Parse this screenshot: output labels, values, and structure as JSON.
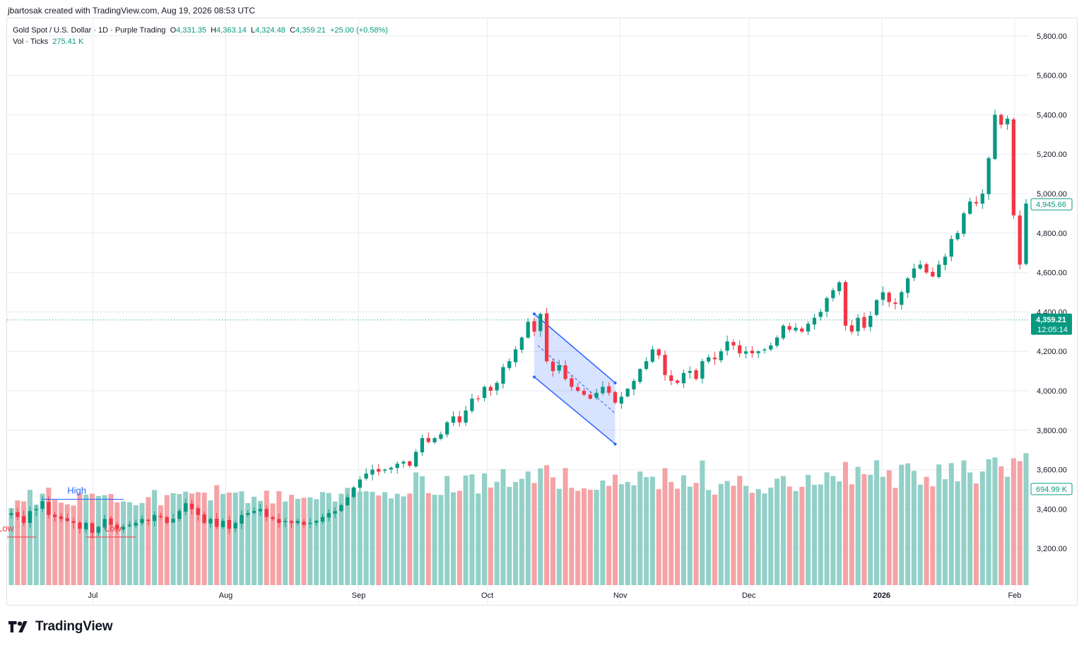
{
  "credit": "jbartosak created with TradingView.com, Aug 19, 2026 08:53 UTC",
  "brand": "TradingView",
  "legend": {
    "symbol": "Gold Spot / U.S. Dollar · 1D · Purple Trading",
    "o_label": "O",
    "o": "4,331.35",
    "h_label": "H",
    "h": "4,363.14",
    "l_label": "L",
    "l": "4,324.48",
    "c_label": "C",
    "c": "4,359.21",
    "change": "+25.00 (+0.58%)",
    "vol_label": "Vol · Ticks",
    "vol": "275.41 K"
  },
  "price_badges": {
    "last_price": "4,945.66",
    "current": "4,359.21",
    "countdown": "12:05:14",
    "volume": "694.99 K"
  },
  "annotations": {
    "high": "High",
    "low": "Low",
    "low_left": "Low"
  },
  "colors": {
    "up": "#089981",
    "down": "#f23645",
    "vol_up": "#92d0c8",
    "vol_down": "#f5a3a6",
    "channel": "#2962ff",
    "grid": "#e9ebf0"
  },
  "chart_data": {
    "type": "candlestick",
    "title": "Gold Spot / U.S. Dollar · 1D · Purple Trading",
    "y_ticks": [
      "3,200.00",
      "3,400.00",
      "3,600.00",
      "3,800.00",
      "4,000.00",
      "4,200.00",
      "4,400.00",
      "4,600.00",
      "4,800.00",
      "5,000.00",
      "5,200.00",
      "5,400.00",
      "5,600.00",
      "5,800.00"
    ],
    "ylim": [
      3000,
      5900
    ],
    "x_ticks": [
      "Jul",
      "Aug",
      "Sep",
      "Oct",
      "Nov",
      "Dec",
      "2026",
      "Feb"
    ],
    "x_range": [
      "2025-06-11",
      "2026-02-02"
    ],
    "x_tick_dates": [
      "2025-07-01",
      "2025-08-01",
      "2025-09-01",
      "2025-10-01",
      "2025-11-01",
      "2025-12-01",
      "2026-01-01",
      "2026-02-01"
    ],
    "current_price": 4359.21,
    "last_price": 4945.66,
    "grid": true,
    "closes": [
      3380,
      3360,
      3330,
      3390,
      3400,
      3440,
      3370,
      3360,
      3350,
      3340,
      3330,
      3300,
      3330,
      3280,
      3310,
      3350,
      3320,
      3300,
      3310,
      3320,
      3330,
      3350,
      3340,
      3370,
      3360,
      3330,
      3350,
      3390,
      3430,
      3400,
      3370,
      3330,
      3350,
      3310,
      3340,
      3300,
      3330,
      3370,
      3380,
      3390,
      3400,
      3360,
      3350,
      3330,
      3340,
      3330,
      3340,
      3320,
      3330,
      3340,
      3360,
      3380,
      3390,
      3420,
      3460,
      3510,
      3550,
      3580,
      3600,
      3590,
      3600,
      3610,
      3630,
      3640,
      3620,
      3690,
      3760,
      3740,
      3760,
      3780,
      3840,
      3870,
      3840,
      3900,
      3960,
      3960,
      4020,
      4000,
      4040,
      4120,
      4150,
      4210,
      4270,
      4350,
      4300,
      4390,
      4150,
      4100,
      4130,
      4060,
      4020,
      4000,
      3980,
      3960,
      3990,
      4020,
      3990,
      3940,
      3970,
      4010,
      4050,
      4110,
      4150,
      4210,
      4180,
      4080,
      4050,
      4040,
      4090,
      4100,
      4060,
      4150,
      4170,
      4160,
      4200,
      4250,
      4230,
      4190,
      4200,
      4190,
      4200,
      4210,
      4230,
      4270,
      4330,
      4310,
      4320,
      4300,
      4340,
      4370,
      4400,
      4470,
      4510,
      4550,
      4330,
      4300,
      4370,
      4320,
      4380,
      4460,
      4500,
      4450,
      4440,
      4500,
      4570,
      4620,
      4640,
      4600,
      4580,
      4640,
      4680,
      4770,
      4800,
      4900,
      4960,
      4950,
      5000,
      5180,
      5400,
      5350,
      5380,
      4890,
      4640,
      4950
    ]
  }
}
